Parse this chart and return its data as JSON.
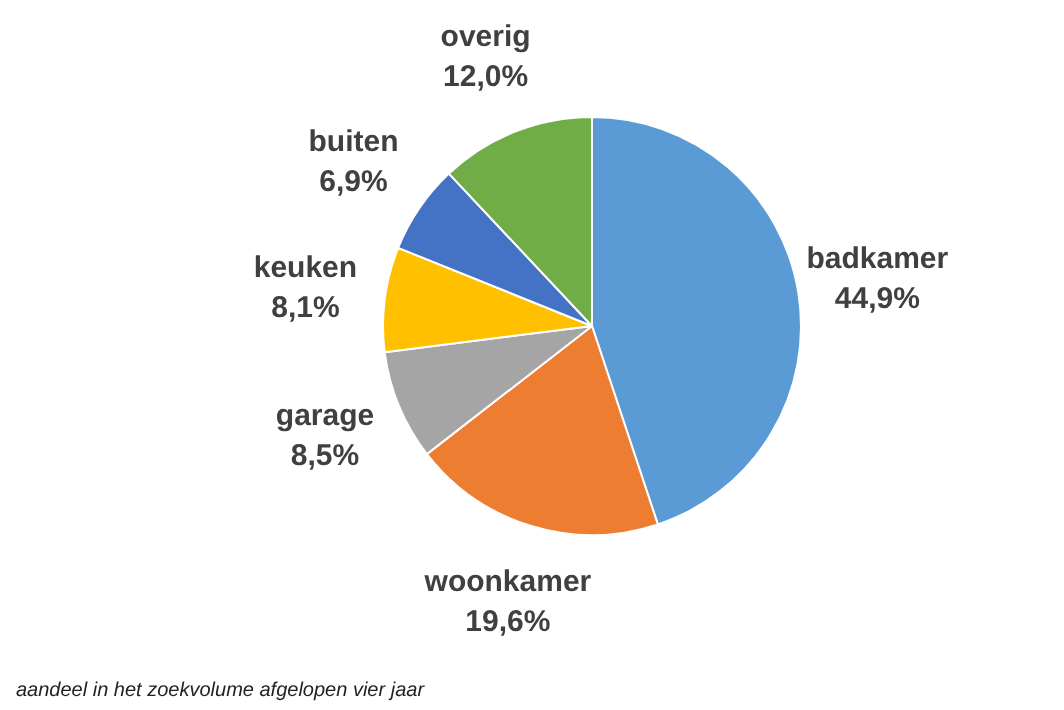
{
  "chart_data": {
    "type": "pie",
    "categories": [
      "badkamer",
      "woonkamer",
      "garage",
      "keuken",
      "buiten",
      "overig"
    ],
    "values": [
      44.9,
      19.6,
      8.5,
      8.1,
      6.9,
      12.0
    ],
    "value_labels": [
      "44,9%",
      "19,6%",
      "8,5%",
      "8,1%",
      "6,9%",
      "12,0%"
    ],
    "colors": [
      "#5b9bd5",
      "#ed7d31",
      "#a5a5a5",
      "#ffc000",
      "#4472c4",
      "#70ad47"
    ],
    "annotations": [
      "aandeel in het zoekvolume afgelopen vier jaar"
    ],
    "legend": false
  }
}
